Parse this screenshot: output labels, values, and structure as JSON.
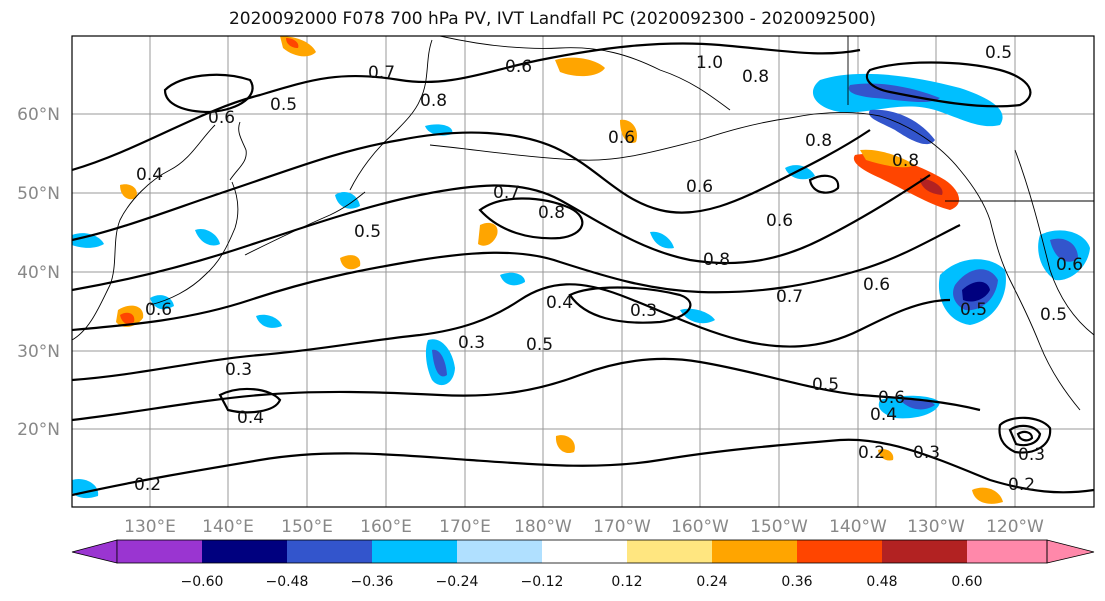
{
  "title": "2020092000 F078 700 hPa PV, IVT Landfall PC (2020092300 - 2020092500)",
  "lat_labels": [
    "60°N",
    "50°N",
    "40°N",
    "30°N",
    "20°N"
  ],
  "lon_labels": [
    "130°E",
    "140°E",
    "150°E",
    "160°E",
    "170°E",
    "180°W",
    "170°W",
    "160°W",
    "150°W",
    "140°W",
    "130°W",
    "120°W"
  ],
  "contour_labels": [
    "0.7",
    "0.6",
    "1.0",
    "0.8",
    "0.5",
    "0.6",
    "0.5",
    "0.8",
    "0.8",
    "0.4",
    "0.8",
    "0.6",
    "0.7",
    "0.8",
    "0.6",
    "0.5",
    "0.6",
    "0.8",
    "0.4",
    "0.3",
    "0.5",
    "0.7",
    "0.6",
    "0.6",
    "0.3",
    "0.3",
    "0.4",
    "0.5",
    "0.6",
    "0.4",
    "0.2",
    "0.3",
    "0.2",
    "0.2",
    "0.3",
    "0.5",
    "0.6",
    "0.5"
  ],
  "colorbar": {
    "colors": [
      "#9a35d1",
      "#00007f",
      "#3355cc",
      "#00bfff",
      "#b0e0ff",
      "#ffffff",
      "#ffe680",
      "#ffa500",
      "#ff4500",
      "#b22222",
      "#ff88aa"
    ],
    "tick_labels": [
      "−0.60",
      "−0.48",
      "−0.36",
      "−0.24",
      "−0.12",
      "0.12",
      "0.24",
      "0.36",
      "0.48",
      "0.60"
    ]
  }
}
